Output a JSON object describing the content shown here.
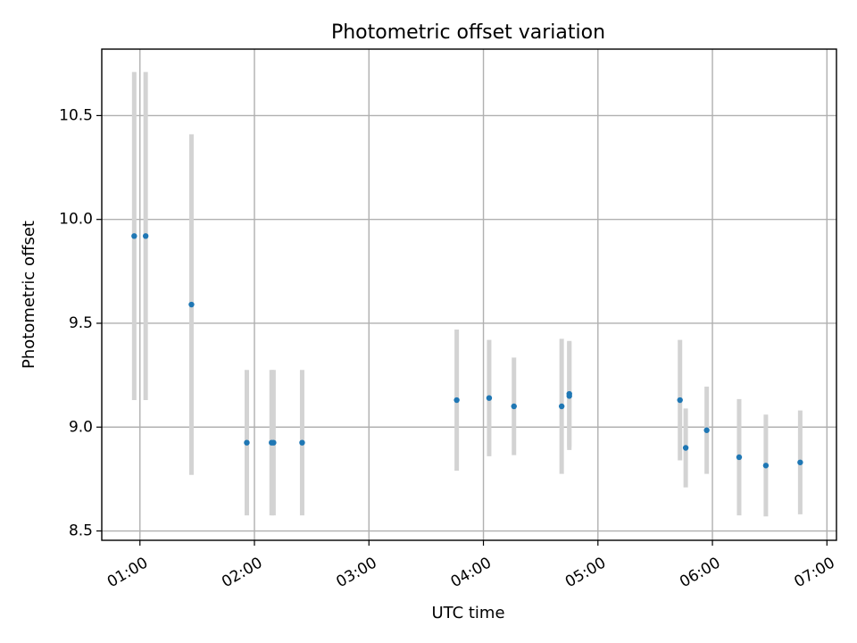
{
  "chart_data": {
    "type": "scatter",
    "title": "Photometric offset variation",
    "xlabel": "UTC time",
    "ylabel": "Photometric offset",
    "x_ticks": [
      "01:00",
      "02:00",
      "03:00",
      "04:00",
      "05:00",
      "06:00",
      "07:00"
    ],
    "y_ticks": [
      8.5,
      9.0,
      9.5,
      10.0,
      10.5
    ],
    "xlim": [
      "00:40",
      "07:05"
    ],
    "ylim": [
      8.455,
      10.82
    ],
    "grid": true,
    "colors": {
      "point": "#1f77b4",
      "errorbar": "#d3d3d3"
    },
    "points": [
      {
        "x": "00:57",
        "y": 9.92,
        "err": 0.79
      },
      {
        "x": "01:03",
        "y": 9.92,
        "err": 0.79
      },
      {
        "x": "01:27",
        "y": 9.59,
        "err": 0.82
      },
      {
        "x": "01:56",
        "y": 8.925,
        "err": 0.35
      },
      {
        "x": "02:09",
        "y": 8.925,
        "err": 0.35
      },
      {
        "x": "02:10",
        "y": 8.925,
        "err": 0.35
      },
      {
        "x": "02:25",
        "y": 8.925,
        "err": 0.35
      },
      {
        "x": "03:46",
        "y": 9.13,
        "err": 0.34
      },
      {
        "x": "04:03",
        "y": 9.14,
        "err": 0.28
      },
      {
        "x": "04:16",
        "y": 9.1,
        "err": 0.235
      },
      {
        "x": "04:41",
        "y": 9.1,
        "err": 0.325
      },
      {
        "x": "04:45",
        "y": 9.16,
        "err": 0.255
      },
      {
        "x": "04:45",
        "y": 9.15,
        "err": 0.26
      },
      {
        "x": "05:43",
        "y": 9.13,
        "err": 0.29
      },
      {
        "x": "05:46",
        "y": 8.9,
        "err": 0.19
      },
      {
        "x": "05:57",
        "y": 8.985,
        "err": 0.21
      },
      {
        "x": "06:14",
        "y": 8.855,
        "err": 0.28
      },
      {
        "x": "06:28",
        "y": 8.815,
        "err": 0.245
      },
      {
        "x": "06:46",
        "y": 8.83,
        "err": 0.25
      }
    ]
  }
}
